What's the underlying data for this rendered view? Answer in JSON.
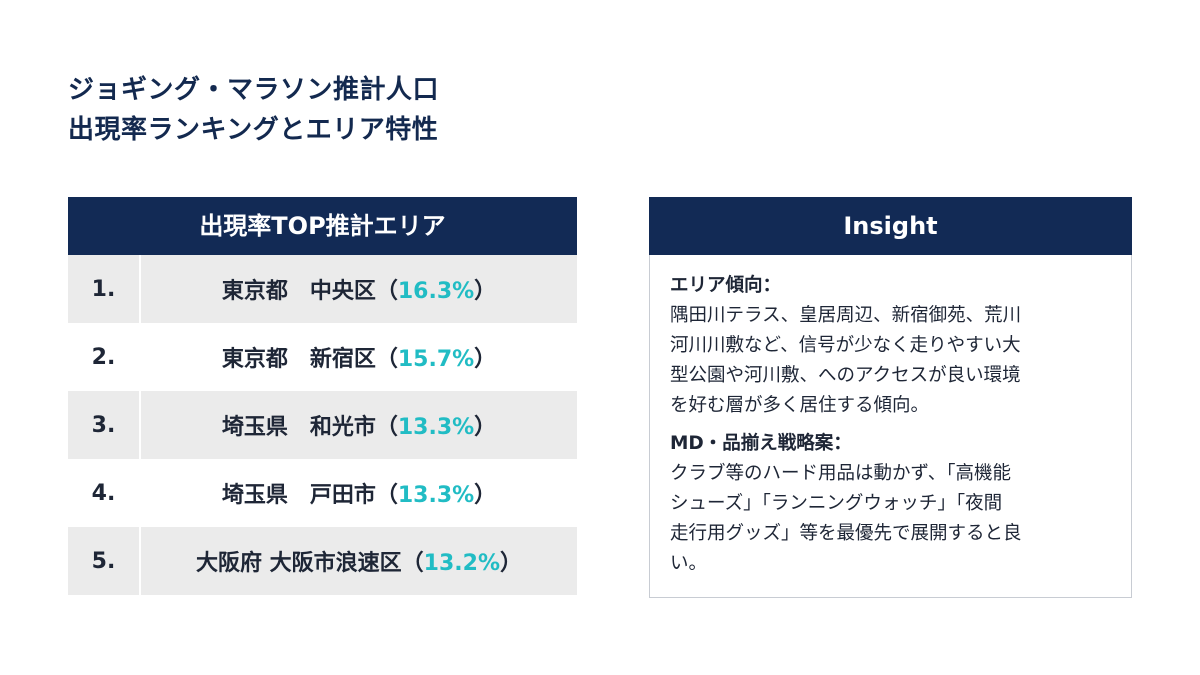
{
  "title": {
    "line1": "ジョギング・マラソン推計人口",
    "line2": "出現率ランキングとエリア特性"
  },
  "ranking": {
    "header": "出現率TOP推計エリア",
    "rows": [
      {
        "rank": "1.",
        "area": "東京都　中央区",
        "open": "（",
        "pct": "16.3%",
        "close": "）"
      },
      {
        "rank": "2.",
        "area": "東京都　新宿区",
        "open": "（",
        "pct": "15.7%",
        "close": "）"
      },
      {
        "rank": "3.",
        "area": "埼玉県　和光市",
        "open": "（",
        "pct": "13.3%",
        "close": "）"
      },
      {
        "rank": "4.",
        "area": "埼玉県　戸田市",
        "open": "（",
        "pct": "13.3%",
        "close": "）"
      },
      {
        "rank": "5.",
        "area": "大阪府 大阪市浪速区",
        "open": "（",
        "pct": "13.2%",
        "close": "）"
      }
    ]
  },
  "insight": {
    "header": "Insight",
    "area_heading": "エリア傾向：",
    "area_lines": [
      "隅田川テラス、皇居周辺、新宿御苑、荒川",
      "河川川敷など、信号が少なく走りやすい大",
      "型公園や河川敷、へのアクセスが良い環境",
      "を好む層が多く居住する傾向。"
    ],
    "md_heading": "MD・品揃え戦略案：",
    "md_lines": [
      "クラブ等のハード用品は動かず、「高機能",
      "シューズ」「ランニングウォッチ」「夜間",
      "走行用グッズ」等を最優先で展開すると良",
      "い。"
    ]
  }
}
